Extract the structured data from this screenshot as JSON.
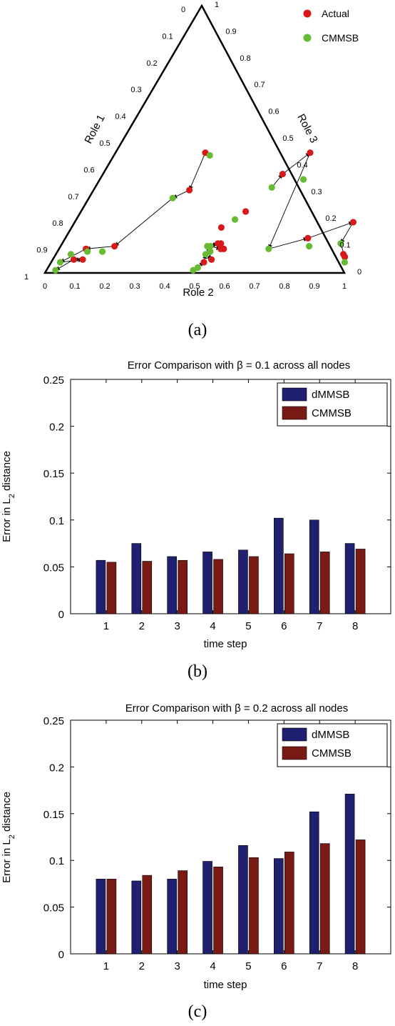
{
  "chart_data": [
    {
      "panel": "a",
      "type": "scatter",
      "coordinate_system": "ternary",
      "caption": "(a)",
      "axis_labels": [
        "Role 1",
        "Role 2",
        "Role 3"
      ],
      "left_edge_ticks": [
        "0",
        "0.1",
        "0.2",
        "0.3",
        "0.4",
        "0.5",
        "0.6",
        "0.7",
        "0.8",
        "0.9",
        "1"
      ],
      "bottom_edge_ticks": [
        "0",
        "0.1",
        "0.2",
        "0.3",
        "0.4",
        "0.5",
        "0.6",
        "0.7",
        "0.8",
        "0.9",
        "1"
      ],
      "right_edge_ticks": [
        "0",
        "0.1",
        "0.2",
        "0.3",
        "0.4",
        "0.5",
        "0.6",
        "0.7",
        "0.8",
        "0.9",
        "1"
      ],
      "legend": [
        {
          "name": "Actual",
          "color": "#d7191c"
        },
        {
          "name": "CMMSB",
          "color": "#66bb33"
        }
      ],
      "legend_position": "top-right",
      "series": [
        {
          "name": "Actual",
          "color": "#d7191c",
          "points": [
            [
              0.51,
              0.04
            ],
            [
              0.53,
              0.05
            ],
            [
              0.55,
              0.09
            ],
            [
              0.54,
              0.09
            ],
            [
              0.52,
              0.11
            ],
            [
              0.53,
              0.11
            ],
            [
              0.5,
              0.17
            ],
            [
              0.55,
              0.23
            ],
            [
              0.6,
              0.37
            ],
            [
              0.65,
              0.45
            ],
            [
              0.81,
              0.13
            ],
            [
              0.93,
              0.19
            ],
            [
              0.96,
              0.07
            ],
            [
              0.97,
              0.06
            ],
            [
              0.3,
              0.45
            ],
            [
              0.32,
              0.31
            ],
            [
              0.18,
              0.1
            ],
            [
              0.09,
              0.09
            ],
            [
              0.1,
              0.05
            ],
            [
              0.07,
              0.05
            ]
          ]
        },
        {
          "name": "CMMSB",
          "color": "#66bb33",
          "points": [
            [
              0.49,
              0.01
            ],
            [
              0.5,
              0.02
            ],
            [
              0.5,
              0.07
            ],
            [
              0.51,
              0.08
            ],
            [
              0.49,
              0.1
            ],
            [
              0.5,
              0.1
            ],
            [
              0.53,
              0.2
            ],
            [
              0.59,
              0.32
            ],
            [
              0.68,
              0.35
            ],
            [
              0.7,
              0.09
            ],
            [
              0.83,
              0.1
            ],
            [
              0.93,
              0.11
            ],
            [
              0.98,
              0.04
            ],
            [
              0.32,
              0.44
            ],
            [
              0.28,
              0.28
            ],
            [
              0.15,
              0.08
            ],
            [
              0.1,
              0.08
            ],
            [
              0.05,
              0.07
            ],
            [
              0.03,
              0.04
            ],
            [
              0.03,
              0.01
            ]
          ]
        }
      ],
      "trajectories": [
        [
          [
            0.49,
            0.01
          ],
          [
            0.51,
            0.04
          ],
          [
            0.5,
            0.07
          ],
          [
            0.53,
            0.05
          ],
          [
            0.49,
            0.1
          ],
          [
            0.52,
            0.11
          ],
          [
            0.5,
            0.1
          ],
          [
            0.54,
            0.09
          ]
        ],
        [
          [
            0.59,
            0.32
          ],
          [
            0.6,
            0.37
          ],
          [
            0.65,
            0.45
          ],
          [
            0.7,
            0.09
          ],
          [
            0.81,
            0.13
          ],
          [
            0.93,
            0.19
          ],
          [
            0.93,
            0.11
          ],
          [
            0.97,
            0.06
          ],
          [
            0.98,
            0.04
          ]
        ],
        [
          [
            0.32,
            0.44
          ],
          [
            0.3,
            0.45
          ],
          [
            0.32,
            0.31
          ],
          [
            0.28,
            0.28
          ],
          [
            0.18,
            0.1
          ],
          [
            0.09,
            0.09
          ],
          [
            0.03,
            0.04
          ],
          [
            0.1,
            0.05
          ],
          [
            0.07,
            0.05
          ],
          [
            0.03,
            0.01
          ]
        ]
      ]
    },
    {
      "panel": "b",
      "type": "bar",
      "caption": "(b)",
      "title": "Error Comparison with β = 0.1 across all nodes",
      "xlabel": "time step",
      "ylabel": "Error in L2 distance",
      "ylabel_main": "Error in L",
      "ylabel_sub": "2",
      "ylabel_tail": " distance",
      "categories": [
        "1",
        "2",
        "3",
        "4",
        "5",
        "6",
        "7",
        "8"
      ],
      "ylim": [
        0,
        0.25
      ],
      "yticks": [
        "0",
        "0.05",
        "0.1",
        "0.15",
        "0.2",
        "0.25"
      ],
      "legend_position": "top-right",
      "series": [
        {
          "name": "dMMSB",
          "color": "#1f2070",
          "values": [
            0.057,
            0.075,
            0.061,
            0.066,
            0.068,
            0.102,
            0.1,
            0.075
          ]
        },
        {
          "name": "CMMSB",
          "color": "#7a1a14",
          "values": [
            0.055,
            0.056,
            0.057,
            0.058,
            0.061,
            0.064,
            0.066,
            0.069
          ]
        }
      ]
    },
    {
      "panel": "c",
      "type": "bar",
      "caption": "(c)",
      "title": "Error Comparison with β = 0.2 across all nodes",
      "xlabel": "time step",
      "ylabel": "Error in L2 distance",
      "ylabel_main": "Error in L",
      "ylabel_sub": "2",
      "ylabel_tail": " distance",
      "categories": [
        "1",
        "2",
        "3",
        "4",
        "5",
        "6",
        "7",
        "8"
      ],
      "ylim": [
        0,
        0.25
      ],
      "yticks": [
        "0",
        "0.05",
        "0.1",
        "0.15",
        "0.2",
        "0.25"
      ],
      "legend_position": "top-right",
      "series": [
        {
          "name": "dMMSB",
          "color": "#1f2070",
          "values": [
            0.08,
            0.078,
            0.08,
            0.099,
            0.116,
            0.102,
            0.152,
            0.171
          ]
        },
        {
          "name": "CMMSB",
          "color": "#7a1a14",
          "values": [
            0.08,
            0.084,
            0.089,
            0.093,
            0.103,
            0.109,
            0.118,
            0.122
          ]
        }
      ]
    }
  ]
}
